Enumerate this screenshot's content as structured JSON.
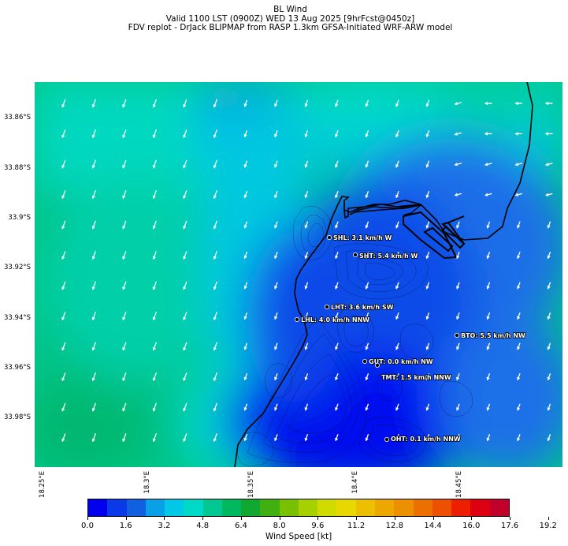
{
  "title_lines": [
    "BL Wind",
    "Valid 1100 LST (0900Z) WED 13 Aug 2025 [9hrFcst@0450z]",
    "FDV replot - DrJack BLIPMAP from RASP 1.3km GFSA-Initiated WRF-ARW model"
  ],
  "lat_ticks": [
    "33.86°S",
    "33.88°S",
    "33.9°S",
    "33.92°S",
    "33.94°S",
    "33.96°S",
    "33.98°S"
  ],
  "lon_ticks": [
    "18.25°E",
    "18.3°E",
    "18.35°E",
    "18.4°E",
    "18.45°E"
  ],
  "stations": [
    {
      "label": "SHL: 3.1 km/h W"
    },
    {
      "label": "SHT: 5.4 km/h W"
    },
    {
      "label": "LHT: 3.6 km/h SW"
    },
    {
      "label": "LHL: 4.0 km/h NNW"
    },
    {
      "label": "BTO: 5.5 km/h NW"
    },
    {
      "label": "GUT: 0.0 km/h NW"
    },
    {
      "label": "TMT: 1.5 km/h NNW"
    },
    {
      "label": "OHT: 0.1 km/h NNW"
    }
  ],
  "colorbar": {
    "label": "Wind Speed [kt]",
    "tick_labels": [
      "0.0",
      "1.6",
      "3.2",
      "4.8",
      "6.4",
      "8.0",
      "9.6",
      "11.2",
      "12.8",
      "14.4",
      "16.0",
      "17.6",
      "19.2"
    ],
    "colors": [
      "#0000ee",
      "#0a3ae8",
      "#1060e0",
      "#0aa0e8",
      "#00c8e6",
      "#00d8c8",
      "#00c890",
      "#00b860",
      "#10a830",
      "#40b010",
      "#78c000",
      "#a8d000",
      "#d0dc00",
      "#e8d800",
      "#ecc000",
      "#eca800",
      "#ec9000",
      "#ec7000",
      "#ec5000",
      "#ec2000",
      "#dc0010",
      "#c0002a"
    ]
  },
  "map_colors": {
    "sea_green": "#00c27a",
    "mid_cyan": "#00d8c8",
    "blue": "#1a6ee8",
    "deep_blue": "#0000ee"
  }
}
